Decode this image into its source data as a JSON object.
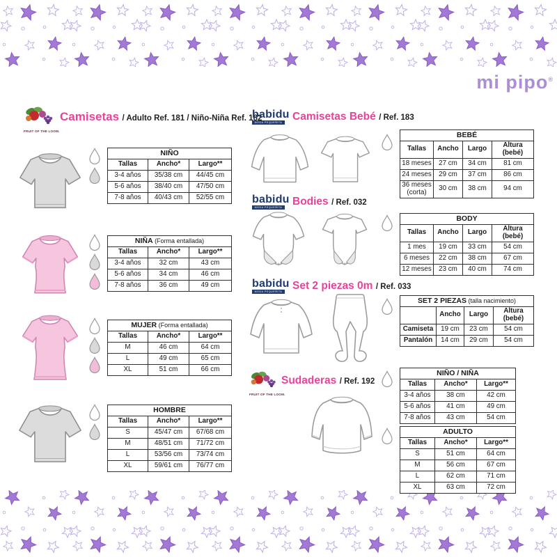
{
  "brand": {
    "mipipo": "mi pipo",
    "mipipo_reg": "®",
    "babidu": "babidu",
    "babidu_tagline": "MODA PEQUEÑITA",
    "fol": "FRUIT OF THE LOOM."
  },
  "sections": {
    "camisetas": {
      "title": "Camisetas",
      "subtitle": "/ Adulto Ref. 181 / Niño-Niña Ref. 182"
    },
    "camisetas_bebe": {
      "title": "Camisetas Bebé",
      "subtitle": "/ Ref. 183"
    },
    "bodies": {
      "title": "Bodies",
      "subtitle": "/ Ref. 032"
    },
    "set2piezas": {
      "title": "Set 2 piezas 0m",
      "subtitle": "/ Ref. 033"
    },
    "sudaderas": {
      "title": "Sudaderas",
      "subtitle": "/ Ref. 192"
    }
  },
  "tables": {
    "nino": {
      "title": "NIÑO",
      "note": "",
      "headers": [
        "Tallas",
        "Ancho*",
        "Largo**"
      ],
      "rows": [
        [
          "3-4 años",
          "35/38 cm",
          "44/45 cm"
        ],
        [
          "5-6 años",
          "38/40 cm",
          "47/50 cm"
        ],
        [
          "7-8 años",
          "40/43 cm",
          "52/55 cm"
        ]
      ]
    },
    "nina": {
      "title": "NIÑA",
      "note": "(Forma entallada)",
      "headers": [
        "Tallas",
        "Ancho*",
        "Largo**"
      ],
      "rows": [
        [
          "3-4 años",
          "32 cm",
          "43 cm"
        ],
        [
          "5-6 años",
          "34 cm",
          "46 cm"
        ],
        [
          "7-8 años",
          "36 cm",
          "49 cm"
        ]
      ]
    },
    "mujer": {
      "title": "MUJER",
      "note": "(Forma entallada)",
      "headers": [
        "Tallas",
        "Ancho*",
        "Largo**"
      ],
      "rows": [
        [
          "M",
          "46 cm",
          "64 cm"
        ],
        [
          "L",
          "49 cm",
          "65 cm"
        ],
        [
          "XL",
          "51 cm",
          "66 cm"
        ]
      ]
    },
    "hombre": {
      "title": "HOMBRE",
      "note": "",
      "headers": [
        "Tallas",
        "Ancho*",
        "Largo**"
      ],
      "rows": [
        [
          "S",
          "45/47 cm",
          "67/68 cm"
        ],
        [
          "M",
          "48/51 cm",
          "71/72 cm"
        ],
        [
          "L",
          "53/56 cm",
          "73/74 cm"
        ],
        [
          "XL",
          "59/61 cm",
          "76/77 cm"
        ]
      ]
    },
    "bebe": {
      "title": "BEBÉ",
      "note": "",
      "headers": [
        "Tallas",
        "Ancho",
        "Largo",
        "Altura (bebé)"
      ],
      "rows": [
        [
          "18 meses",
          "27 cm",
          "34 cm",
          "81 cm"
        ],
        [
          "24 meses",
          "29 cm",
          "37 cm",
          "86 cm"
        ],
        [
          "36 meses\n(corta)",
          "30 cm",
          "38 cm",
          "94 cm"
        ]
      ]
    },
    "body": {
      "title": "BODY",
      "note": "",
      "headers": [
        "Tallas",
        "Ancho",
        "Largo",
        "Altura (bebé)"
      ],
      "rows": [
        [
          "1 mes",
          "19 cm",
          "33 cm",
          "54 cm"
        ],
        [
          "6 meses",
          "22 cm",
          "38 cm",
          "67 cm"
        ],
        [
          "12 meses",
          "23 cm",
          "40 cm",
          "74 cm"
        ]
      ]
    },
    "set": {
      "title": "SET 2 PIEZAS",
      "note": "(talla nacimiento)",
      "bold_first": true,
      "headers": [
        "",
        "Ancho",
        "Largo",
        "Altura (bebé)"
      ],
      "rows": [
        [
          "Camiseta",
          "19 cm",
          "23 cm",
          "54 cm"
        ],
        [
          "Pantalón",
          "14 cm",
          "29 cm",
          "54 cm"
        ]
      ]
    },
    "nino_nina": {
      "title": "NIÑO / NIÑA",
      "note": "",
      "headers": [
        "Tallas",
        "Ancho*",
        "Largo**"
      ],
      "rows": [
        [
          "3-4 años",
          "38 cm",
          "42 cm"
        ],
        [
          "5-6 años",
          "41 cm",
          "49 cm"
        ],
        [
          "7-8 años",
          "43 cm",
          "54 cm"
        ]
      ]
    },
    "adulto": {
      "title": "ADULTO",
      "note": "",
      "headers": [
        "Tallas",
        "Ancho*",
        "Largo**"
      ],
      "rows": [
        [
          "S",
          "51 cm",
          "64 cm"
        ],
        [
          "M",
          "56 cm",
          "67 cm"
        ],
        [
          "L",
          "62 cm",
          "71 cm"
        ],
        [
          "XL",
          "63 cm",
          "72 cm"
        ]
      ]
    }
  },
  "colors": {
    "accent_pink": "#e8439a",
    "babidu_navy": "#203a6e",
    "mipipo_purple": "#ab8ed6",
    "star_purple": "#a379d6"
  }
}
